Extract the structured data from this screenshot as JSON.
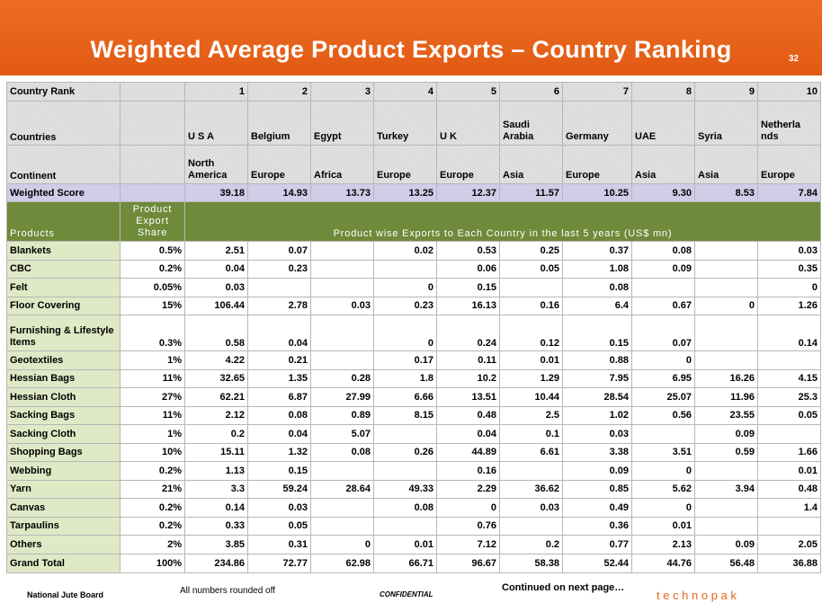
{
  "header": {
    "title": "Weighted Average Product Exports – Country Ranking",
    "page_number": "32"
  },
  "table": {
    "rank_label": "Country Rank",
    "ranks": [
      "1",
      "2",
      "3",
      "4",
      "5",
      "6",
      "7",
      "8",
      "9",
      "10"
    ],
    "countries_label": "Countries",
    "countries": [
      "U S A",
      "Belgium",
      "Egypt",
      "Turkey",
      "U K",
      "Saudi Arabia",
      "Germany",
      "UAE",
      "Syria",
      "Netherla nds"
    ],
    "continent_label": "Continent",
    "continents": [
      "North America",
      "Europe",
      "Africa",
      "Europe",
      "Europe",
      "Asia",
      "Europe",
      "Asia",
      "Asia",
      "Europe"
    ],
    "score_label": "Weighted Score",
    "scores": [
      "39.18",
      "14.93",
      "13.73",
      "13.25",
      "12.37",
      "11.57",
      "10.25",
      "9.30",
      "8.53",
      "7.84"
    ],
    "products_header": "Products",
    "share_header": "Product Export Share",
    "exports_header": "Product wise Exports to Each Country in the last 5 years (US$ mn)",
    "rows": [
      {
        "name": "Blankets",
        "share": "0.5%",
        "values": [
          "2.51",
          "0.07",
          "",
          "0.02",
          "0.53",
          "0.25",
          "0.37",
          "0.08",
          "",
          "0.03"
        ]
      },
      {
        "name": "CBC",
        "share": "0.2%",
        "values": [
          "0.04",
          "0.23",
          "",
          "",
          "0.06",
          "0.05",
          "1.08",
          "0.09",
          "",
          "0.35"
        ]
      },
      {
        "name": "Felt",
        "share": "0.05%",
        "values": [
          "0.03",
          "",
          "",
          "0",
          "0.15",
          "",
          "0.08",
          "",
          "",
          "0"
        ]
      },
      {
        "name": "Floor Covering",
        "share": "15%",
        "values": [
          "106.44",
          "2.78",
          "0.03",
          "0.23",
          "16.13",
          "0.16",
          "6.4",
          "0.67",
          "0",
          "1.26"
        ]
      },
      {
        "name": "Furnishing & Lifestyle Items",
        "share": "0.3%",
        "values": [
          "0.58",
          "0.04",
          "",
          "0",
          "0.24",
          "0.12",
          "0.15",
          "0.07",
          "",
          "0.14"
        ]
      },
      {
        "name": "Geotextiles",
        "share": "1%",
        "values": [
          "4.22",
          "0.21",
          "",
          "0.17",
          "0.11",
          "0.01",
          "0.88",
          "0",
          "",
          ""
        ]
      },
      {
        "name": "Hessian Bags",
        "share": "11%",
        "values": [
          "32.65",
          "1.35",
          "0.28",
          "1.8",
          "10.2",
          "1.29",
          "7.95",
          "6.95",
          "16.26",
          "4.15"
        ]
      },
      {
        "name": "Hessian Cloth",
        "share": "27%",
        "values": [
          "62.21",
          "6.87",
          "27.99",
          "6.66",
          "13.51",
          "10.44",
          "28.54",
          "25.07",
          "11.96",
          "25.3"
        ]
      },
      {
        "name": "Sacking Bags",
        "share": "11%",
        "values": [
          "2.12",
          "0.08",
          "0.89",
          "8.15",
          "0.48",
          "2.5",
          "1.02",
          "0.56",
          "23.55",
          "0.05"
        ]
      },
      {
        "name": "Sacking Cloth",
        "share": "1%",
        "values": [
          "0.2",
          "0.04",
          "5.07",
          "",
          "0.04",
          "0.1",
          "0.03",
          "",
          "0.09",
          ""
        ]
      },
      {
        "name": "Shopping Bags",
        "share": "10%",
        "values": [
          "15.11",
          "1.32",
          "0.08",
          "0.26",
          "44.89",
          "6.61",
          "3.38",
          "3.51",
          "0.59",
          "1.66"
        ]
      },
      {
        "name": "Webbing",
        "share": "0.2%",
        "values": [
          "1.13",
          "0.15",
          "",
          "",
          "0.16",
          "",
          "0.09",
          "0",
          "",
          "0.01"
        ]
      },
      {
        "name": "Yarn",
        "share": "21%",
        "values": [
          "3.3",
          "59.24",
          "28.64",
          "49.33",
          "2.29",
          "36.62",
          "0.85",
          "5.62",
          "3.94",
          "0.48"
        ]
      },
      {
        "name": "Canvas",
        "share": "0.2%",
        "values": [
          "0.14",
          "0.03",
          "",
          "0.08",
          "0",
          "0.03",
          "0.49",
          "0",
          "",
          "1.4"
        ]
      },
      {
        "name": "Tarpaulins",
        "share": "0.2%",
        "values": [
          "0.33",
          "0.05",
          "",
          "",
          "0.76",
          "",
          "0.36",
          "0.01",
          "",
          ""
        ]
      },
      {
        "name": "Others",
        "share": "2%",
        "values": [
          "3.85",
          "0.31",
          "0",
          "0.01",
          "7.12",
          "0.2",
          "0.77",
          "2.13",
          "0.09",
          "2.05"
        ]
      }
    ],
    "total": {
      "name": "Grand Total",
      "share": "100%",
      "values": [
        "234.86",
        "72.77",
        "62.98",
        "66.71",
        "96.67",
        "58.38",
        "52.44",
        "44.76",
        "56.48",
        "36.88"
      ]
    }
  },
  "footer": {
    "org": "National Jute Board",
    "note": "All numbers rounded off",
    "confidential": "CONFIDENTIAL",
    "continued": "Continued on next page…",
    "brand": "t e c h n o p a k",
    "brand_color": "#e8631a"
  }
}
